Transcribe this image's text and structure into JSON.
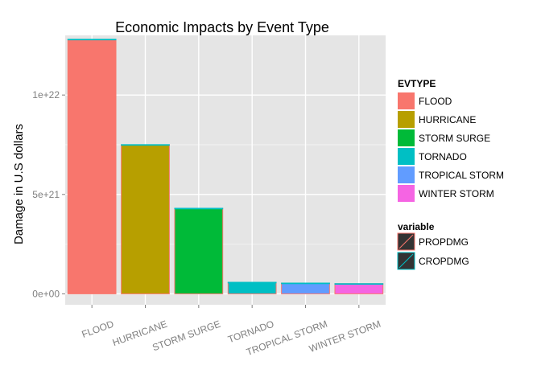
{
  "chart_data": {
    "type": "bar",
    "title": "Economic Impacts by Event Type",
    "xlabel": "",
    "ylabel": "Damage in U.S dollars",
    "categories": [
      "FLOOD",
      "HURRICANE",
      "STORM SURGE",
      "TORNADO",
      "TROPICAL STORM",
      "WINTER STORM"
    ],
    "series": [
      {
        "name": "PROPDMG",
        "values": [
          1.28e+22,
          7.5e+21,
          4.3e+21,
          5.8e+20,
          5.4e+20,
          5.1e+20
        ]
      },
      {
        "name": "CROPDMG",
        "values": [
          5e+18,
          5e+18,
          5e+18,
          2e+18,
          2e+18,
          2e+18
        ]
      }
    ],
    "ylim": [
      -5.5e+20,
      1.3e+22
    ],
    "yticks": [
      {
        "value": 0,
        "label": "0e+00"
      },
      {
        "value": 5e+21,
        "label": "5e+21"
      },
      {
        "value": 1e+22,
        "label": "1e+22"
      }
    ],
    "grid": true,
    "legend": {
      "placement": "right",
      "fill": {
        "title": "EVTYPE",
        "entries": [
          {
            "label": "FLOOD",
            "color": "#F8766D"
          },
          {
            "label": "HURRICANE",
            "color": "#B79F00"
          },
          {
            "label": "STORM SURGE",
            "color": "#00BA38"
          },
          {
            "label": "TORNADO",
            "color": "#00BFC4"
          },
          {
            "label": "TROPICAL STORM",
            "color": "#619CFF"
          },
          {
            "label": "WINTER STORM",
            "color": "#F564E3"
          }
        ]
      },
      "colour": {
        "title": "variable",
        "entries": [
          {
            "label": "PROPDMG",
            "color": "#F8766D"
          },
          {
            "label": "CROPDMG",
            "color": "#00BFC4"
          }
        ]
      }
    },
    "colors": {
      "panel": "#E5E5E5",
      "grid_major": "#FFFFFF",
      "grid_minor": "#F2F2F2",
      "tick_text": "#7F7F7F",
      "key_background": "#333333"
    }
  }
}
